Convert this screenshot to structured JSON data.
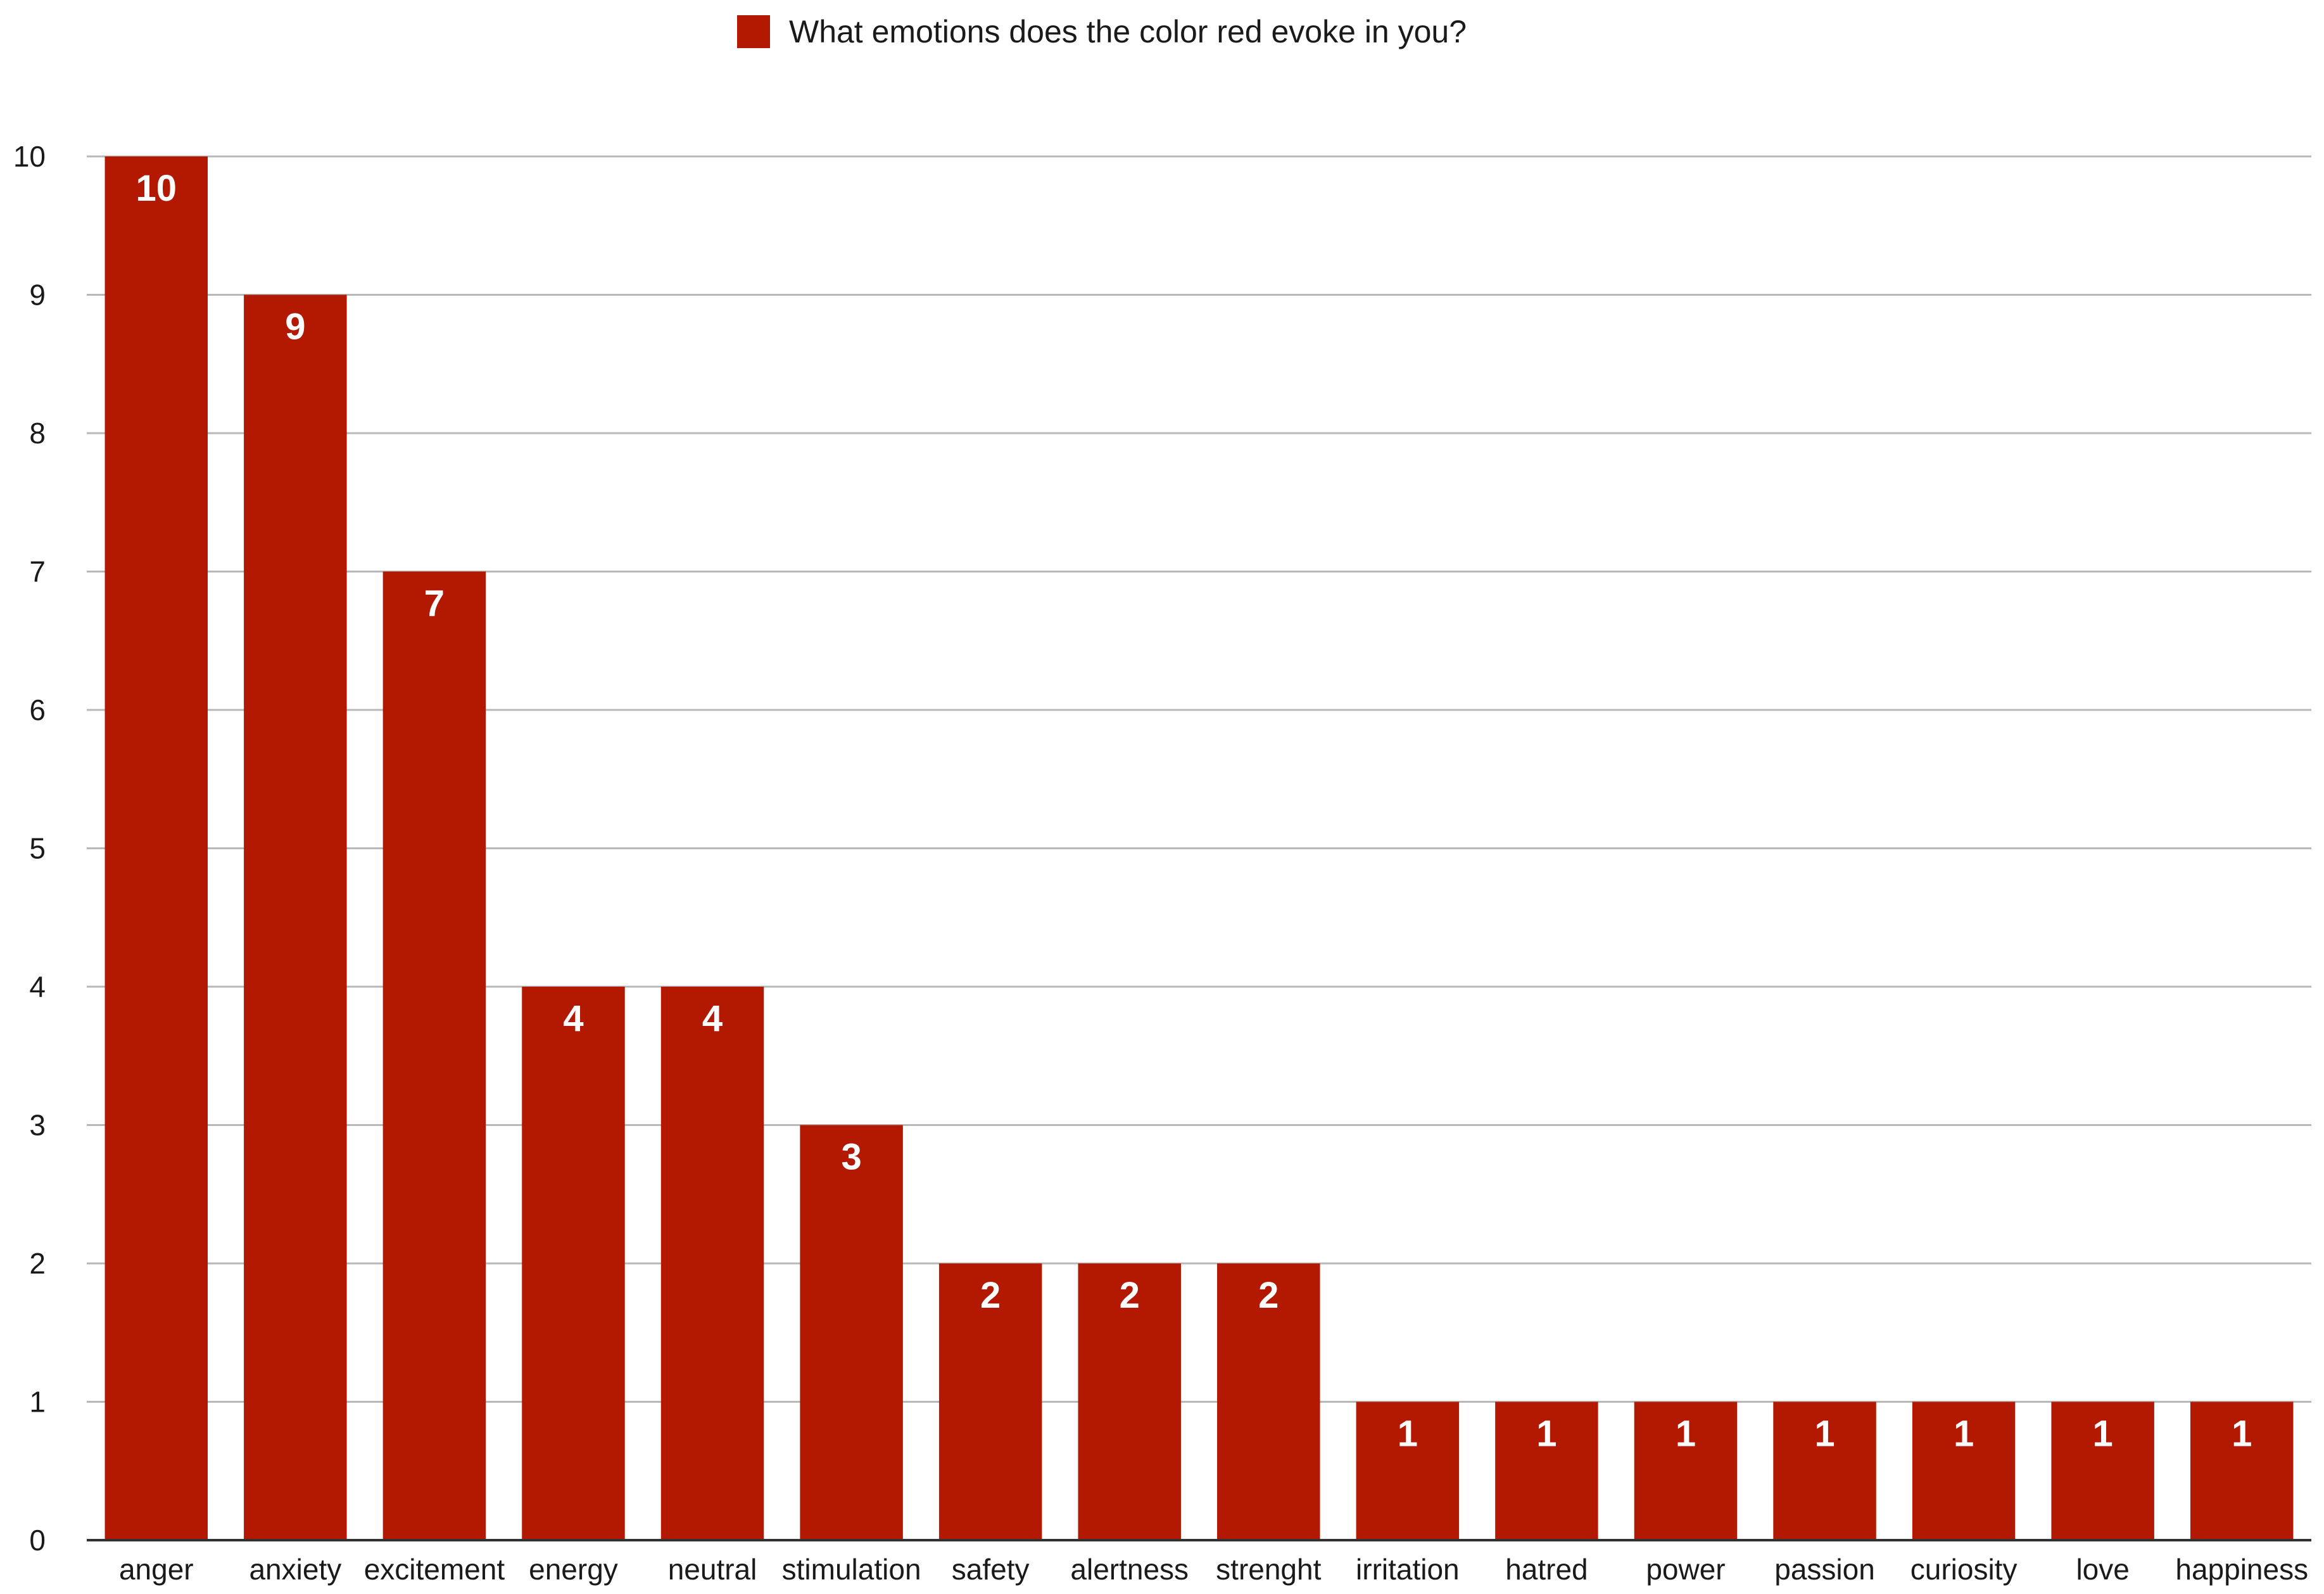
{
  "chart_data": {
    "type": "bar",
    "categories": [
      "anger",
      "anxiety",
      "excitement",
      "energy",
      "neutral",
      "stimulation",
      "safety",
      "alertness",
      "strenght",
      "irritation",
      "hatred",
      "power",
      "passion",
      "curiosity",
      "love",
      "happiness"
    ],
    "series": [
      {
        "name": "What emotions does the color red evoke in you?",
        "values": [
          10,
          9,
          7,
          4,
          4,
          3,
          2,
          2,
          2,
          1,
          1,
          1,
          1,
          1,
          1,
          1
        ],
        "color": "#b31800"
      }
    ],
    "yticks": [
      "0",
      "1",
      "2",
      "3",
      "4",
      "5",
      "6",
      "7",
      "8",
      "9",
      "10"
    ],
    "ylim": [
      0,
      10
    ],
    "grid": true,
    "legend_position": "top-center",
    "data_labels": true,
    "data_label_color": "#ffffff"
  }
}
